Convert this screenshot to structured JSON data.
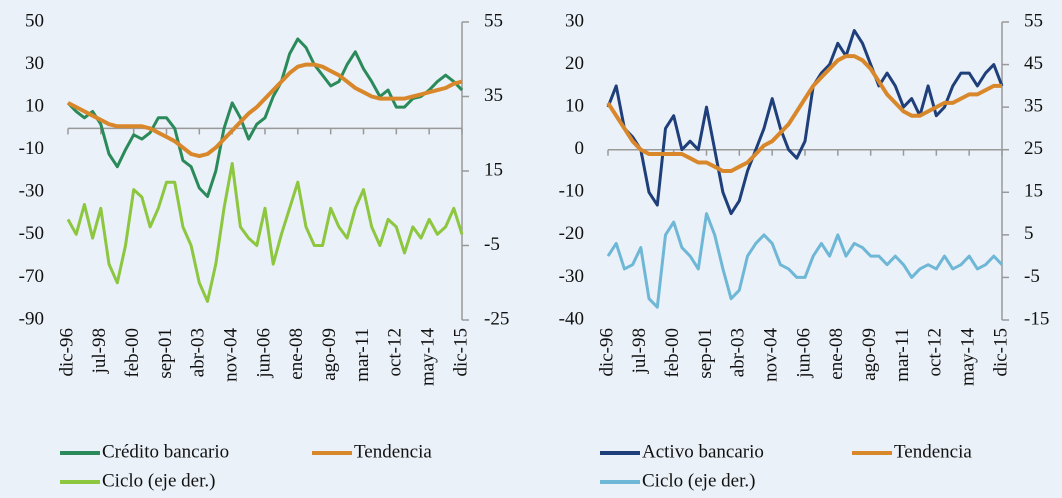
{
  "chart_data": [
    {
      "type": "line",
      "categories": [
        "dic-96",
        null,
        null,
        null,
        "jul-98",
        null,
        null,
        null,
        "feb-00",
        null,
        null,
        null,
        "sep-01",
        null,
        null,
        null,
        "abr-03",
        null,
        null,
        null,
        "nov-04",
        null,
        null,
        null,
        "jun-06",
        null,
        null,
        null,
        "ene-08",
        null,
        null,
        null,
        "ago-09",
        null,
        null,
        null,
        "mar-11",
        null,
        null,
        null,
        "oct-12",
        null,
        null,
        null,
        "may-14",
        null,
        null,
        null,
        "dic-15"
      ],
      "ylim": [
        -90,
        50
      ],
      "yticks": [
        -90,
        -70,
        -50,
        -30,
        -10,
        10,
        30,
        50
      ],
      "y2lim": [
        -25,
        55
      ],
      "y2ticks": [
        -25,
        -5,
        15,
        35,
        55
      ],
      "series": [
        {
          "name": "Crédito bancario",
          "color": "#2a8a5a",
          "values": [
            12,
            8,
            5,
            8,
            2,
            -12,
            -18,
            -10,
            -3,
            -5,
            -2,
            5,
            5,
            0,
            -15,
            -18,
            -28,
            -32,
            -20,
            0,
            12,
            5,
            -5,
            2,
            5,
            15,
            22,
            35,
            42,
            38,
            30,
            25,
            20,
            22,
            30,
            36,
            28,
            22,
            15,
            18,
            10,
            10,
            14,
            15,
            18,
            22,
            25,
            22,
            18
          ]
        },
        {
          "name": "Tendencia",
          "color": "#d9872b",
          "values": [
            12,
            10,
            8,
            6,
            4,
            2,
            1,
            1,
            1,
            1,
            0,
            -2,
            -4,
            -6,
            -9,
            -12,
            -13,
            -12,
            -9,
            -5,
            -1,
            3,
            7,
            10,
            14,
            18,
            22,
            26,
            29,
            30,
            30,
            29,
            27,
            25,
            22,
            19,
            17,
            15,
            14,
            14,
            14,
            14,
            15,
            16,
            17,
            18,
            19,
            21,
            22
          ]
        },
        {
          "name": "Ciclo (eje der.)",
          "color": "#8dc63f",
          "axis": "y2",
          "values": [
            2,
            -2,
            6,
            -3,
            5,
            -10,
            -15,
            -5,
            10,
            8,
            0,
            5,
            12,
            12,
            0,
            -5,
            -15,
            -20,
            -10,
            5,
            17,
            0,
            -3,
            -5,
            5,
            -10,
            -2,
            5,
            12,
            0,
            -5,
            -5,
            5,
            0,
            -3,
            5,
            10,
            0,
            -5,
            2,
            0,
            -7,
            0,
            -3,
            2,
            -2,
            0,
            5,
            -2
          ]
        }
      ]
    },
    {
      "type": "line",
      "categories": [
        "dic-96",
        null,
        null,
        null,
        "jul-98",
        null,
        null,
        null,
        "feb-00",
        null,
        null,
        null,
        "sep-01",
        null,
        null,
        null,
        "abr-03",
        null,
        null,
        null,
        "nov-04",
        null,
        null,
        null,
        "jun-06",
        null,
        null,
        null,
        "ene-08",
        null,
        null,
        null,
        "ago-09",
        null,
        null,
        null,
        "mar-11",
        null,
        null,
        null,
        "oct-12",
        null,
        null,
        null,
        "may-14",
        null,
        null,
        null,
        "dic-15"
      ],
      "ylim": [
        -40,
        30
      ],
      "yticks": [
        -40,
        -30,
        -20,
        -10,
        0,
        10,
        20,
        30
      ],
      "y2lim": [
        -15,
        55
      ],
      "y2ticks": [
        -15,
        -5,
        5,
        15,
        25,
        35,
        45,
        55
      ],
      "series": [
        {
          "name": "Activo bancario",
          "color": "#1f3f7a",
          "values": [
            10,
            15,
            5,
            3,
            0,
            -10,
            -13,
            5,
            8,
            0,
            2,
            0,
            10,
            0,
            -10,
            -15,
            -12,
            -5,
            0,
            5,
            12,
            5,
            0,
            -2,
            2,
            15,
            18,
            20,
            25,
            22,
            28,
            25,
            20,
            15,
            18,
            15,
            10,
            12,
            8,
            15,
            8,
            10,
            15,
            18,
            18,
            15,
            18,
            20,
            15
          ]
        },
        {
          "name": "Tendencia",
          "color": "#d9872b",
          "values": [
            11,
            8,
            5,
            2,
            0,
            -1,
            -1,
            -1,
            -1,
            -1,
            -2,
            -3,
            -3,
            -4,
            -5,
            -5,
            -4,
            -3,
            -1,
            1,
            2,
            4,
            6,
            9,
            12,
            15,
            17,
            19,
            21,
            22,
            22,
            21,
            19,
            16,
            13,
            11,
            9,
            8,
            8,
            9,
            10,
            11,
            11,
            12,
            13,
            13,
            14,
            15,
            15
          ]
        },
        {
          "name": "Ciclo (eje der.)",
          "color": "#6fb7d6",
          "axis": "y2",
          "values": [
            0,
            3,
            -3,
            -2,
            2,
            -10,
            -12,
            5,
            8,
            2,
            0,
            -3,
            10,
            5,
            -3,
            -10,
            -8,
            0,
            3,
            5,
            3,
            -2,
            -3,
            -5,
            -5,
            0,
            3,
            0,
            5,
            0,
            3,
            2,
            0,
            0,
            -2,
            0,
            -2,
            -5,
            -3,
            -2,
            -3,
            0,
            -3,
            -2,
            0,
            -3,
            -2,
            0,
            -2
          ]
        }
      ]
    }
  ]
}
